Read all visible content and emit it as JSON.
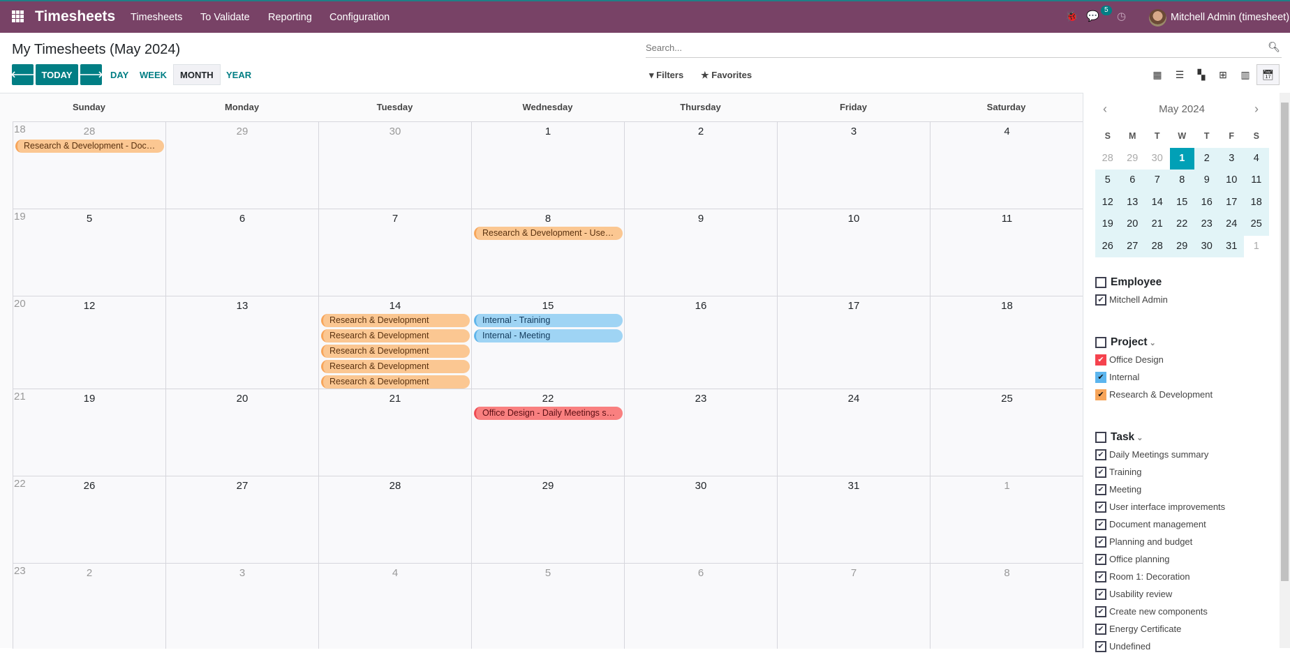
{
  "navbar": {
    "app_title": "Timesheets",
    "menu": [
      "Timesheets",
      "To Validate",
      "Reporting",
      "Configuration"
    ],
    "messages_count": "5",
    "user": "Mitchell Admin (timesheet)",
    "color": "#784266"
  },
  "control": {
    "title": "My Timesheets (May 2024)",
    "today_label": "TODAY",
    "scales": [
      "DAY",
      "WEEK",
      "MONTH",
      "YEAR"
    ],
    "active_scale": "MONTH",
    "search_placeholder": "Search...",
    "filters_label": "Filters",
    "favorites_label": "Favorites",
    "views": [
      "kanban",
      "list",
      "grid",
      "pivot",
      "graph",
      "calendar"
    ],
    "active_view": "calendar"
  },
  "calendar": {
    "day_names": [
      "Sunday",
      "Monday",
      "Tuesday",
      "Wednesday",
      "Thursday",
      "Friday",
      "Saturday"
    ],
    "weeks": [
      {
        "week": "18",
        "days": [
          [
            "28",
            true
          ],
          [
            "29",
            true
          ],
          [
            "30",
            true
          ],
          [
            "1",
            false
          ],
          [
            "2",
            false
          ],
          [
            "3",
            false
          ],
          [
            "4",
            false
          ]
        ]
      },
      {
        "week": "19",
        "days": [
          [
            "5",
            false
          ],
          [
            "6",
            false
          ],
          [
            "7",
            false
          ],
          [
            "8",
            false
          ],
          [
            "9",
            false
          ],
          [
            "10",
            false
          ],
          [
            "11",
            false
          ]
        ]
      },
      {
        "week": "20",
        "days": [
          [
            "12",
            false
          ],
          [
            "13",
            false
          ],
          [
            "14",
            false
          ],
          [
            "15",
            false
          ],
          [
            "16",
            false
          ],
          [
            "17",
            false
          ],
          [
            "18",
            false
          ]
        ]
      },
      {
        "week": "21",
        "days": [
          [
            "19",
            false
          ],
          [
            "20",
            false
          ],
          [
            "21",
            false
          ],
          [
            "22",
            false
          ],
          [
            "23",
            false
          ],
          [
            "24",
            false
          ],
          [
            "25",
            false
          ]
        ]
      },
      {
        "week": "22",
        "days": [
          [
            "26",
            false
          ],
          [
            "27",
            false
          ],
          [
            "28",
            false
          ],
          [
            "29",
            false
          ],
          [
            "30",
            false
          ],
          [
            "31",
            false
          ],
          [
            "1",
            true
          ]
        ]
      },
      {
        "week": "23",
        "days": [
          [
            "2",
            true
          ],
          [
            "3",
            true
          ],
          [
            "4",
            true
          ],
          [
            "5",
            true
          ],
          [
            "6",
            true
          ],
          [
            "7",
            true
          ],
          [
            "8",
            true
          ]
        ]
      }
    ],
    "events": [
      {
        "week": 0,
        "day": 0,
        "label": "Research & Development - Document management",
        "project": "rd"
      },
      {
        "week": 1,
        "day": 3,
        "label": "Research & Development - User interface improvements",
        "project": "rd"
      },
      {
        "week": 2,
        "day": 2,
        "label": "Research & Development",
        "project": "rd"
      },
      {
        "week": 2,
        "day": 2,
        "label": "Research & Development",
        "project": "rd"
      },
      {
        "week": 2,
        "day": 2,
        "label": "Research & Development",
        "project": "rd"
      },
      {
        "week": 2,
        "day": 2,
        "label": "Research & Development",
        "project": "rd"
      },
      {
        "week": 2,
        "day": 2,
        "label": "Research & Development",
        "project": "rd"
      },
      {
        "week": 2,
        "day": 3,
        "label": "Internal - Training",
        "project": "internal"
      },
      {
        "week": 2,
        "day": 3,
        "label": "Internal - Meeting",
        "project": "internal"
      },
      {
        "week": 3,
        "day": 3,
        "label": "Office Design - Daily Meetings summary",
        "project": "office"
      }
    ],
    "project_colors": {
      "rd": {
        "bg": "#fbc792",
        "border": "#f7a55a"
      },
      "internal": {
        "bg": "#9fd4f4",
        "border": "#5fb4ea"
      },
      "office": {
        "bg": "#f98080",
        "border": "#ee4a52"
      }
    }
  },
  "mini_calendar": {
    "title": "May 2024",
    "day_letters": [
      "S",
      "M",
      "T",
      "W",
      "T",
      "F",
      "S"
    ],
    "rows": [
      [
        "28",
        "29",
        "30",
        "1",
        "2",
        "3",
        "4"
      ],
      [
        "5",
        "6",
        "7",
        "8",
        "9",
        "10",
        "11"
      ],
      [
        "12",
        "13",
        "14",
        "15",
        "16",
        "17",
        "18"
      ],
      [
        "19",
        "20",
        "21",
        "22",
        "23",
        "24",
        "25"
      ],
      [
        "26",
        "27",
        "28",
        "29",
        "30",
        "31",
        "1"
      ]
    ],
    "selected": "1"
  },
  "filters": {
    "employee": {
      "title": "Employee",
      "items": [
        {
          "label": "Mitchell Admin",
          "color": ""
        }
      ]
    },
    "project": {
      "title": "Project",
      "items": [
        {
          "label": "Office Design",
          "color": "#f5434e"
        },
        {
          "label": "Internal",
          "color": "#5cb5ee"
        },
        {
          "label": "Research & Development",
          "color": "#f7a55a"
        }
      ]
    },
    "task": {
      "title": "Task",
      "items": [
        {
          "label": "Daily Meetings summary"
        },
        {
          "label": "Training"
        },
        {
          "label": "Meeting"
        },
        {
          "label": "User interface improvements"
        },
        {
          "label": "Document management"
        },
        {
          "label": "Planning and budget"
        },
        {
          "label": "Office planning"
        },
        {
          "label": "Room 1: Decoration"
        },
        {
          "label": "Usability review"
        },
        {
          "label": "Create new components"
        },
        {
          "label": "Energy Certificate"
        },
        {
          "label": "Undefined"
        }
      ]
    }
  }
}
